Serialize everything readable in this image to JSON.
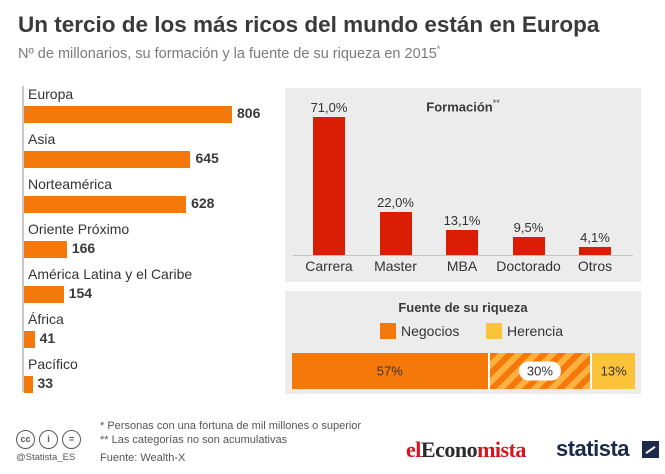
{
  "title": "Un tercio de los más ricos del mundo están en Europa",
  "subtitle": "Nº de millonarios, su formación y la fuente de su riqueza en 2015",
  "subtitle_mark": "*",
  "chart_data": [
    {
      "type": "bar",
      "orientation": "horizontal",
      "categories": [
        "Europa",
        "Asia",
        "Norteamérica",
        "Oriente Próximo",
        "América Latina y el Caribe",
        "África",
        "Pacífico"
      ],
      "values": [
        806,
        645,
        628,
        166,
        154,
        41,
        33
      ],
      "color": "#f5780a",
      "xlim": [
        0,
        806
      ]
    },
    {
      "type": "bar",
      "title": "Formación",
      "title_mark": "**",
      "categories": [
        "Carrera",
        "Master",
        "MBA",
        "Doctorado",
        "Otros"
      ],
      "values": [
        71.0,
        22.0,
        13.1,
        9.5,
        4.1
      ],
      "labels": [
        "71,0%",
        "22,0%",
        "13,1%",
        "9,5%",
        "4,1%"
      ],
      "color": "#d91e05",
      "ylim": [
        0,
        71
      ]
    },
    {
      "type": "bar",
      "stacked": true,
      "title": "Fuente de su riqueza",
      "series": [
        {
          "name": "Negocios",
          "value": 57,
          "label": "57%",
          "color": "#f5780a"
        },
        {
          "name": "",
          "value": 30,
          "label": "30%",
          "pattern": "striped"
        },
        {
          "name": "Herencia",
          "value": 13,
          "label": "13%",
          "color": "#fbc33a"
        }
      ]
    }
  ],
  "footnotes": {
    "note1": "*   Personas con una fortuna de mil millones o superior",
    "note2": "** Las categorías no son acumulativas",
    "source": "Fuente: Wealth-X"
  },
  "footer": {
    "handle": "@Statista_ES",
    "cc_icons": [
      "cc",
      "i",
      "="
    ],
    "brand1_a": "el",
    "brand1_b": "Econo",
    "brand1_c": "mista",
    "brand2": "statista"
  }
}
